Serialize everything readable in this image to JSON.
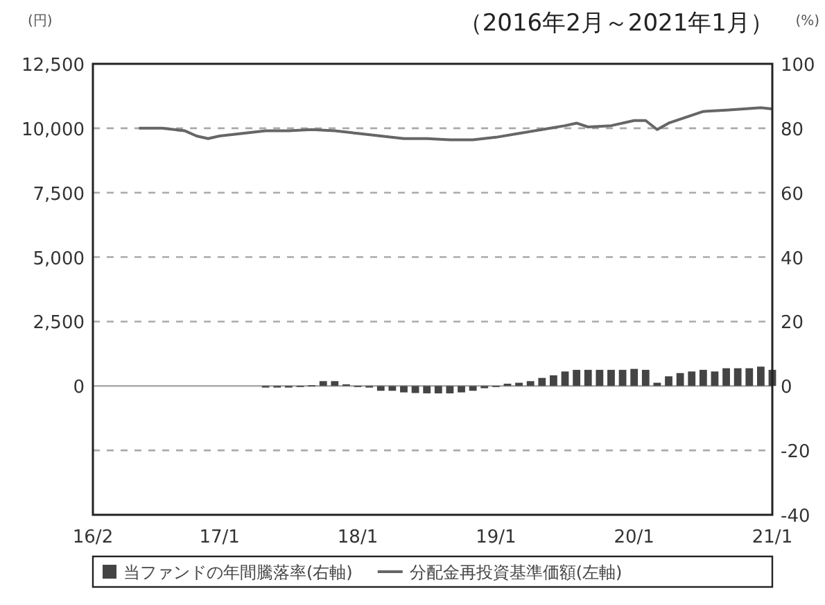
{
  "chart_data": {
    "type": "bar",
    "title": "（2016年2月～2021年1月）",
    "ylabel": "(円)",
    "y2label": "(%)",
    "xlim": [
      "2016-02",
      "2021-01"
    ],
    "xticks": [
      {
        "value": "2016-02",
        "label": "16/2"
      },
      {
        "value": "2017-01",
        "label": "17/1"
      },
      {
        "value": "2018-01",
        "label": "18/1"
      },
      {
        "value": "2019-01",
        "label": "19/1"
      },
      {
        "value": "2020-01",
        "label": "20/1"
      },
      {
        "value": "2021-01",
        "label": "21/1"
      }
    ],
    "ylim": [
      -5000,
      12500
    ],
    "yticks": [
      0,
      {
        "value": 2500,
        "label": "2,500"
      },
      {
        "value": 5000,
        "label": "5,000"
      },
      {
        "value": 7500,
        "label": "7,500"
      },
      {
        "value": 10000,
        "label": "10,000"
      },
      {
        "value": 12500,
        "label": "12,500"
      }
    ],
    "y2lim": [
      -40,
      100
    ],
    "y2ticks": [
      -40,
      -20,
      0,
      20,
      40,
      60,
      80,
      100
    ],
    "grid": true,
    "legend": "bottom",
    "series": [
      {
        "name": "当ファンドの年間騰落率(右軸)",
        "axis": "y2",
        "color": "#444444",
        "x": [
          "2017-05",
          "2017-06",
          "2017-07",
          "2017-08",
          "2017-09",
          "2017-10",
          "2017-11",
          "2017-12",
          "2018-01",
          "2018-02",
          "2018-03",
          "2018-04",
          "2018-05",
          "2018-06",
          "2018-07",
          "2018-08",
          "2018-09",
          "2018-10",
          "2018-11",
          "2018-12",
          "2019-01",
          "2019-02",
          "2019-03",
          "2019-04",
          "2019-05",
          "2019-06",
          "2019-07",
          "2019-08",
          "2019-09",
          "2019-10",
          "2019-11",
          "2019-12",
          "2020-01",
          "2020-02",
          "2020-03",
          "2020-04",
          "2020-05",
          "2020-06",
          "2020-07",
          "2020-08",
          "2020-09",
          "2020-10",
          "2020-11",
          "2020-12",
          "2021-01"
        ],
        "values": [
          -0.5,
          -0.5,
          -0.5,
          -0.3,
          0.2,
          1.5,
          1.5,
          0.5,
          0,
          -0.5,
          -1.5,
          -1.5,
          -2,
          -2.2,
          -2.3,
          -2.3,
          -2.3,
          -2,
          -1.5,
          -0.7,
          0,
          0.7,
          1,
          1.5,
          2.5,
          3.3,
          4.5,
          5,
          5,
          5,
          5,
          5,
          5.3,
          5,
          1,
          3,
          4,
          4.5,
          5,
          4.5,
          5.5,
          5.5,
          5.5,
          6,
          5
        ]
      },
      {
        "name": "分配金再投資基準価額(左軸)",
        "type": "line",
        "color": "#666666",
        "x": [
          "2016-06",
          "2016-08",
          "2016-10",
          "2016-11",
          "2016-12",
          "2017-01",
          "2017-03",
          "2017-05",
          "2017-07",
          "2017-09",
          "2017-11",
          "2018-01",
          "2018-03",
          "2018-05",
          "2018-07",
          "2018-09",
          "2018-11",
          "2019-01",
          "2019-03",
          "2019-05",
          "2019-07",
          "2019-08",
          "2019-09",
          "2019-11",
          "2020-01",
          "2020-02",
          "2020-03",
          "2020-04",
          "2020-07",
          "2020-09",
          "2020-12",
          "2021-01"
        ],
        "values": [
          10000,
          10000,
          9900,
          9700,
          9600,
          9700,
          9800,
          9900,
          9900,
          9950,
          9900,
          9800,
          9700,
          9600,
          9600,
          9550,
          9550,
          9650,
          9800,
          9950,
          10100,
          10200,
          10050,
          10100,
          10300,
          10300,
          9950,
          10200,
          10650,
          10700,
          10800,
          10750
        ]
      }
    ]
  }
}
